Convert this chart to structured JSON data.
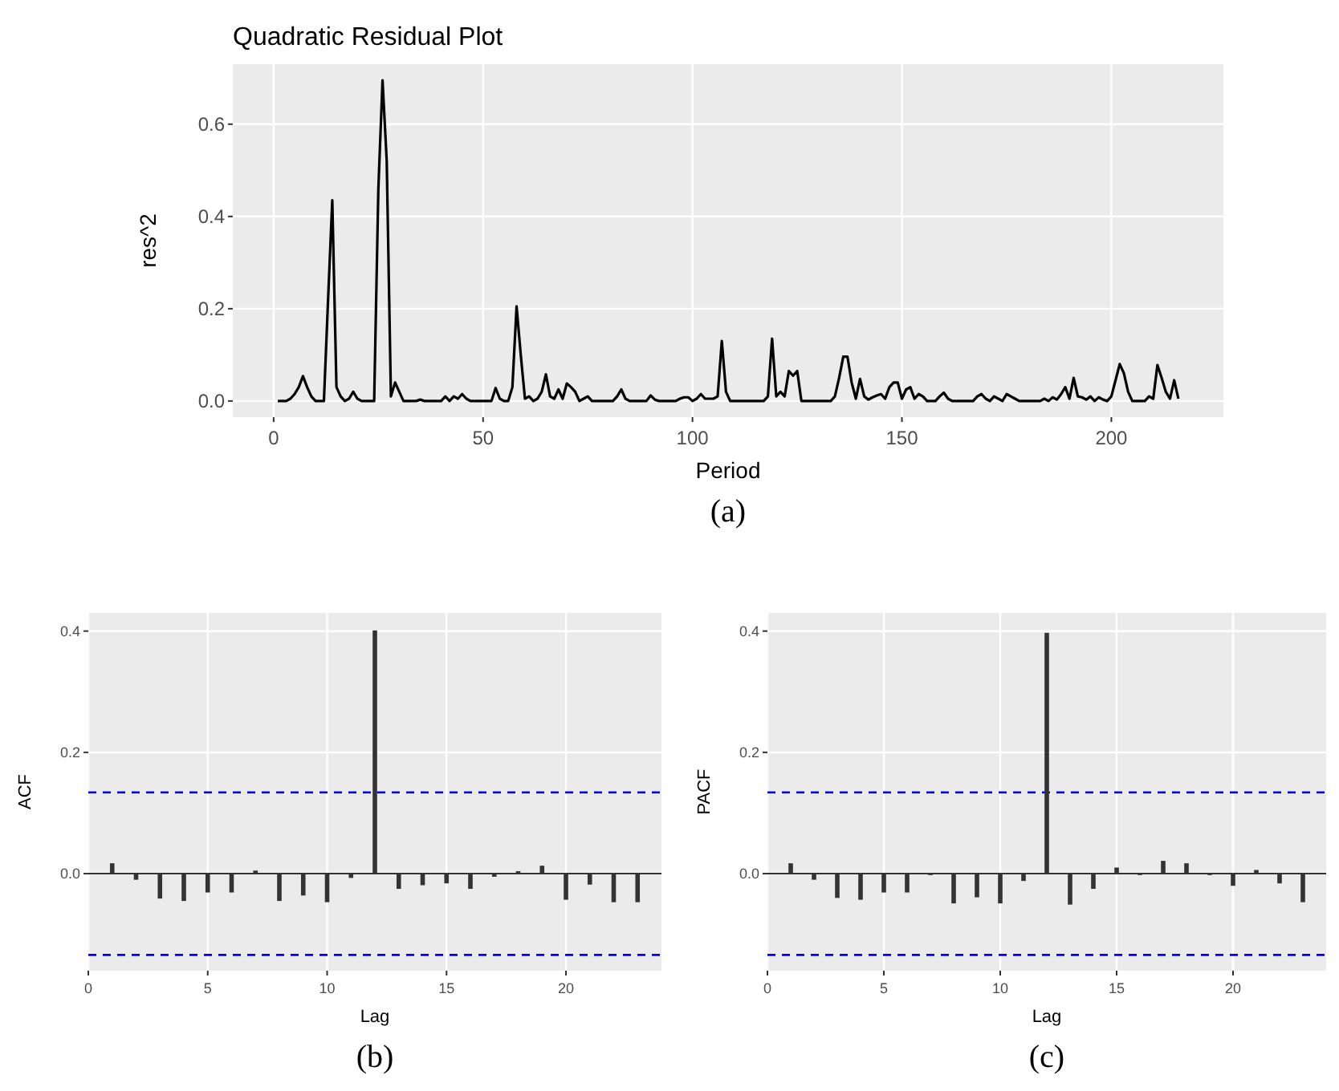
{
  "chart_data": [
    {
      "type": "line",
      "title": "Quadratic Residual Plot",
      "xlabel": "Period",
      "ylabel": "res^2",
      "color": "#000000",
      "line_style": "solid",
      "grid": true,
      "annotations": [
        "(a)"
      ],
      "xlim": [
        -9.75,
        226.75
      ],
      "xticks": [
        0,
        50,
        100,
        150,
        200
      ],
      "ylim": [
        -0.035,
        0.73
      ],
      "yticks": [
        {
          "value": 0,
          "label": "0.0"
        },
        {
          "value": 0.2,
          "label": "0.2"
        },
        {
          "value": 0.4,
          "label": "0.4"
        },
        {
          "value": 0.6,
          "label": "0.6"
        }
      ],
      "x": [
        1,
        2,
        3,
        4,
        5,
        6,
        7,
        8,
        9,
        10,
        11,
        12,
        13,
        14,
        15,
        16,
        17,
        18,
        19,
        20,
        21,
        22,
        23,
        24,
        25,
        26,
        27,
        28,
        29,
        30,
        31,
        32,
        33,
        34,
        35,
        36,
        37,
        38,
        39,
        40,
        41,
        42,
        43,
        44,
        45,
        46,
        47,
        48,
        49,
        50,
        51,
        52,
        53,
        54,
        55,
        56,
        57,
        58,
        59,
        60,
        61,
        62,
        63,
        64,
        65,
        66,
        67,
        68,
        69,
        70,
        71,
        72,
        73,
        74,
        75,
        76,
        77,
        78,
        79,
        80,
        81,
        82,
        83,
        84,
        85,
        86,
        87,
        88,
        89,
        90,
        91,
        92,
        93,
        94,
        95,
        96,
        97,
        98,
        99,
        100,
        101,
        102,
        103,
        104,
        105,
        106,
        107,
        108,
        109,
        110,
        111,
        112,
        113,
        114,
        115,
        116,
        117,
        118,
        119,
        120,
        121,
        122,
        123,
        124,
        125,
        126,
        127,
        128,
        129,
        130,
        131,
        132,
        133,
        134,
        135,
        136,
        137,
        138,
        139,
        140,
        141,
        142,
        143,
        144,
        145,
        146,
        147,
        148,
        149,
        150,
        151,
        152,
        153,
        154,
        155,
        156,
        157,
        158,
        159,
        160,
        161,
        162,
        163,
        164,
        165,
        166,
        167,
        168,
        169,
        170,
        171,
        172,
        173,
        174,
        175,
        176,
        177,
        178,
        179,
        180,
        181,
        182,
        183,
        184,
        185,
        186,
        187,
        188,
        189,
        190,
        191,
        192,
        193,
        194,
        195,
        196,
        197,
        198,
        199,
        200,
        201,
        202,
        203,
        204,
        205,
        206,
        207,
        208,
        209,
        210,
        211,
        212,
        213,
        214,
        215,
        216
      ],
      "values": [
        0,
        0,
        0,
        0.005,
        0.015,
        0.03,
        0.054,
        0.03,
        0.01,
        0,
        0,
        0,
        0.22,
        0.435,
        0.03,
        0.01,
        0,
        0.005,
        0.02,
        0.005,
        0,
        0,
        0,
        0,
        0.46,
        0.695,
        0.52,
        0.01,
        0.04,
        0.02,
        0,
        0,
        0,
        0,
        0.003,
        0,
        0,
        0,
        0,
        0,
        0.01,
        0,
        0.01,
        0.005,
        0.015,
        0.005,
        0,
        0,
        0,
        0,
        0,
        0,
        0.028,
        0.005,
        0,
        0,
        0.03,
        0.205,
        0.1,
        0.005,
        0.01,
        0,
        0.005,
        0.02,
        0.058,
        0.01,
        0.005,
        0.025,
        0.005,
        0.038,
        0.03,
        0.02,
        0,
        0.005,
        0.01,
        0,
        0,
        0,
        0,
        0,
        0,
        0.01,
        0.025,
        0.005,
        0,
        0,
        0,
        0,
        0,
        0.012,
        0.003,
        0,
        0,
        0,
        0,
        0,
        0.005,
        0.008,
        0.008,
        0,
        0.005,
        0.015,
        0.005,
        0.005,
        0.005,
        0.01,
        0.13,
        0.02,
        0,
        0,
        0,
        0,
        0,
        0,
        0,
        0,
        0,
        0.01,
        0.135,
        0.01,
        0.02,
        0.01,
        0.065,
        0.055,
        0.065,
        0,
        0,
        0,
        0,
        0,
        0,
        0,
        0,
        0.01,
        0.05,
        0.096,
        0.096,
        0.04,
        0.005,
        0.048,
        0.01,
        0.003,
        0.008,
        0.012,
        0.015,
        0.005,
        0.03,
        0.04,
        0.04,
        0.005,
        0.025,
        0.03,
        0.005,
        0.015,
        0.01,
        0,
        0,
        0,
        0.01,
        0.018,
        0.005,
        0,
        0,
        0,
        0,
        0,
        0,
        0.01,
        0.015,
        0.005,
        0,
        0.01,
        0.005,
        0,
        0.015,
        0.01,
        0.005,
        0,
        0,
        0,
        0,
        0,
        0,
        0.005,
        0,
        0.008,
        0.003,
        0.015,
        0.03,
        0.005,
        0.05,
        0.01,
        0.008,
        0.003,
        0.01,
        0,
        0.008,
        0.003,
        0,
        0.01,
        0.045,
        0.08,
        0.06,
        0.02,
        0,
        0,
        0,
        0,
        0.01,
        0.005,
        0.078,
        0.05,
        0.02,
        0.005,
        0.045,
        0.005
      ]
    },
    {
      "type": "bar",
      "xlabel": "Lag",
      "ylabel": "ACF",
      "color": "#333333",
      "grid": true,
      "annotations": [
        "(b)"
      ],
      "xlim": [
        0,
        24
      ],
      "xticks": [
        0,
        5,
        10,
        15,
        20
      ],
      "ylim": [
        -0.16,
        0.43
      ],
      "yticks": [
        {
          "value": 0,
          "label": "0.0"
        },
        {
          "value": 0.2,
          "label": "0.2"
        },
        {
          "value": 0.4,
          "label": "0.4"
        }
      ],
      "x": [
        1,
        2,
        3,
        4,
        5,
        6,
        7,
        8,
        9,
        10,
        11,
        12,
        13,
        14,
        15,
        16,
        17,
        18,
        19,
        20,
        21,
        22,
        23
      ],
      "values": [
        0.016,
        -0.009,
        -0.04,
        -0.044,
        -0.03,
        -0.03,
        0.004,
        -0.044,
        -0.035,
        -0.046,
        -0.006,
        0.4,
        -0.024,
        -0.018,
        -0.015,
        -0.024,
        -0.004,
        0.003,
        0.012,
        -0.042,
        -0.017,
        -0.046,
        -0.046
      ],
      "ref_lines": [
        {
          "axis": "y",
          "value": 0.134,
          "color": "#0000ff",
          "line_style": "dashed"
        },
        {
          "axis": "y",
          "value": -0.134,
          "color": "#0000ff",
          "line_style": "dashed"
        }
      ]
    },
    {
      "type": "bar",
      "xlabel": "Lag",
      "ylabel": "PACF",
      "color": "#333333",
      "grid": true,
      "annotations": [
        "(c)"
      ],
      "xlim": [
        0,
        24
      ],
      "xticks": [
        0,
        5,
        10,
        15,
        20
      ],
      "ylim": [
        -0.16,
        0.43
      ],
      "yticks": [
        {
          "value": 0,
          "label": "0.0"
        },
        {
          "value": 0.2,
          "label": "0.2"
        },
        {
          "value": 0.4,
          "label": "0.4"
        }
      ],
      "x": [
        1,
        2,
        3,
        4,
        5,
        6,
        7,
        8,
        9,
        10,
        11,
        12,
        13,
        14,
        15,
        16,
        17,
        18,
        19,
        20,
        21,
        22,
        23
      ],
      "values": [
        0.016,
        -0.009,
        -0.039,
        -0.042,
        -0.03,
        -0.03,
        0,
        -0.048,
        -0.038,
        -0.048,
        -0.011,
        0.396,
        -0.05,
        -0.024,
        0.009,
        0,
        0.02,
        0.016,
        0,
        -0.019,
        0.005,
        -0.015,
        -0.046
      ],
      "ref_lines": [
        {
          "axis": "y",
          "value": 0.134,
          "color": "#0000ff",
          "line_style": "dashed"
        },
        {
          "axis": "y",
          "value": -0.134,
          "color": "#0000ff",
          "line_style": "dashed"
        }
      ]
    }
  ]
}
